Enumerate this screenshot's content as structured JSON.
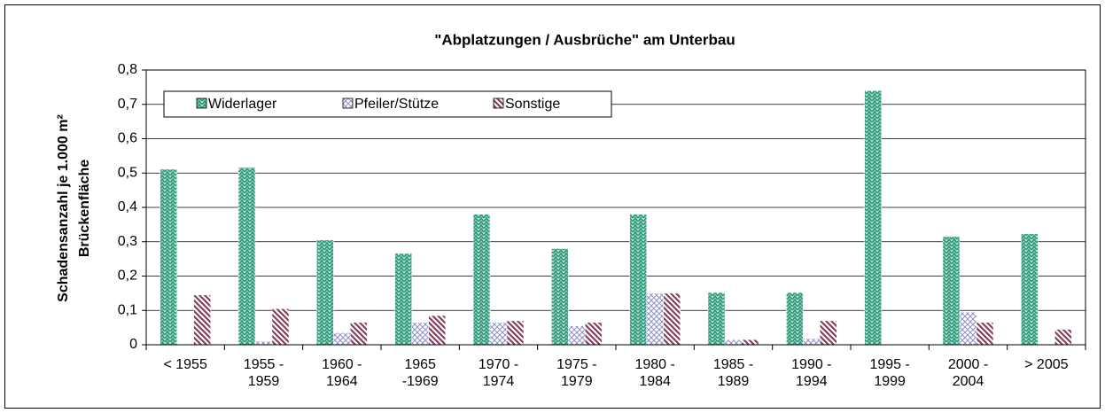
{
  "chart_data": {
    "type": "bar",
    "title": "\"Abplatzungen / Ausbrüche\" am Unterbau",
    "ylabel": [
      "Schadensanzahl je 1.000 m²",
      "Brückenfläche"
    ],
    "categories": [
      [
        "< 1955"
      ],
      [
        "1955 -",
        "1959"
      ],
      [
        "1960 -",
        "1964"
      ],
      [
        "1965",
        "-1969"
      ],
      [
        "1970 -",
        "1974"
      ],
      [
        "1975 -",
        "1979"
      ],
      [
        "1980 -",
        "1984"
      ],
      [
        "1985 -",
        "1989"
      ],
      [
        "1990 -",
        "1994"
      ],
      [
        "1995 -",
        "1999"
      ],
      [
        "2000 -",
        "2004"
      ],
      [
        "> 2005"
      ]
    ],
    "series": [
      {
        "name": "Widerlager",
        "color": "#2e9e7e",
        "values": [
          0.511,
          0.516,
          0.305,
          0.266,
          0.38,
          0.28,
          0.38,
          0.152,
          0.152,
          0.74,
          0.315,
          0.323
        ]
      },
      {
        "name": "Pfeiler/Stütze",
        "color": "#8f8fc8",
        "values": [
          0,
          0.01,
          0.035,
          0.065,
          0.065,
          0.055,
          0.15,
          0.015,
          0.018,
          0,
          0.095,
          0
        ]
      },
      {
        "name": "Sonstige",
        "color": "#8b3a62",
        "values": [
          0.145,
          0.105,
          0.065,
          0.085,
          0.07,
          0.065,
          0.15,
          0.015,
          0.07,
          0,
          0.065,
          0.045
        ]
      }
    ],
    "ylim": [
      0,
      0.8
    ],
    "yticks": [
      0,
      {
        "value": 0.1,
        "label": "0,1"
      },
      {
        "value": 0.2,
        "label": "0,2"
      },
      {
        "value": 0.3,
        "label": "0,3"
      },
      {
        "value": 0.4,
        "label": "0,4"
      },
      {
        "value": 0.5,
        "label": "0,5"
      },
      {
        "value": 0.6,
        "label": "0,6"
      },
      {
        "value": 0.7,
        "label": "0,7"
      },
      {
        "value": 0.8,
        "label": "0,8"
      }
    ],
    "grid": true
  }
}
